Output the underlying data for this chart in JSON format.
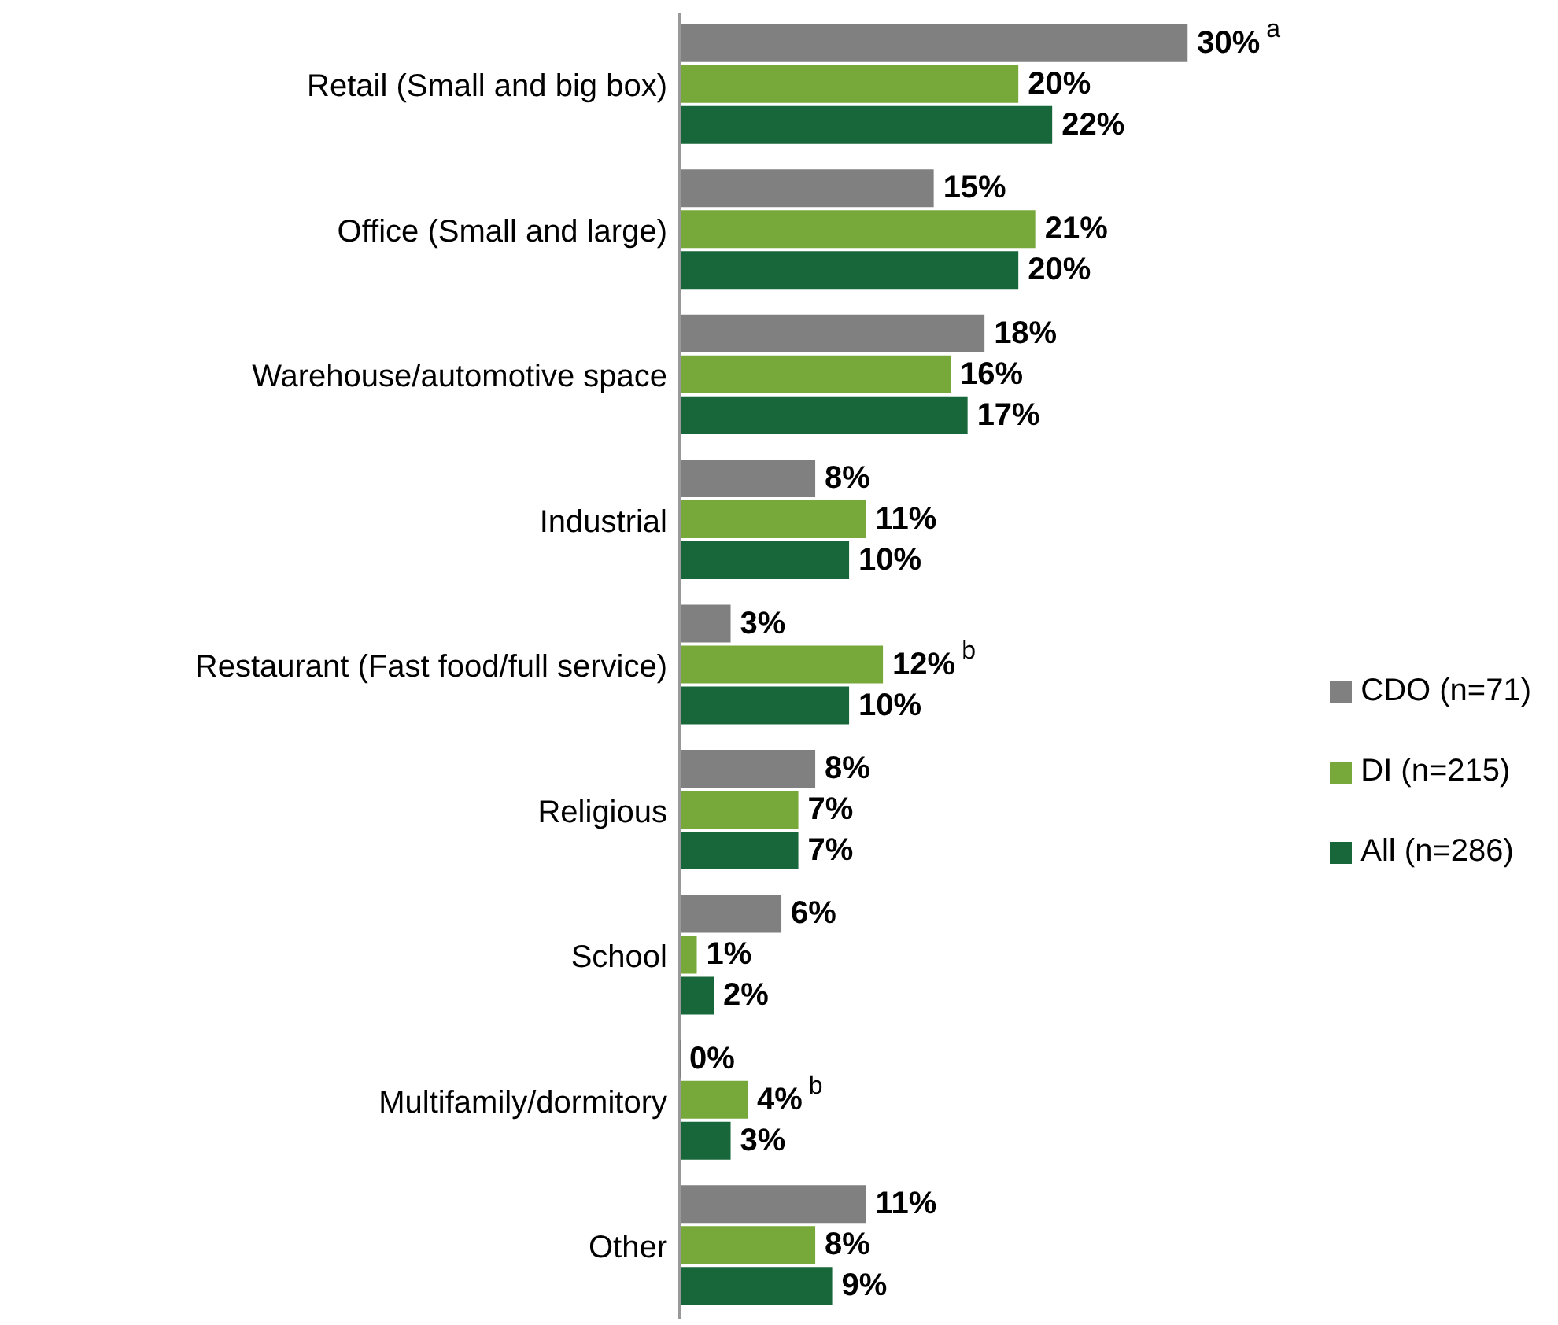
{
  "chart_data": {
    "type": "bar",
    "orientation": "horizontal",
    "data_labels": true,
    "legend": "right",
    "categories": [
      "Retail (Small and big box)",
      "Office (Small and large)",
      "Warehouse/automotive space",
      "Industrial",
      "Restaurant (Fast food/full service)",
      "Religious",
      "School",
      "Multifamily/dormitory",
      "Other"
    ],
    "series": [
      {
        "name": "CDO (n=71)",
        "color": "#808080",
        "values": [
          30,
          15,
          18,
          8,
          3,
          8,
          6,
          0,
          11
        ],
        "value_labels": [
          "30%$^{a}$",
          "15%",
          "18%",
          "8%",
          "3%",
          "8%",
          "6%",
          "0%",
          "11%"
        ]
      },
      {
        "name": "DI (n=215)",
        "color": "#77a83a",
        "values": [
          20,
          21,
          16,
          11,
          12,
          7,
          1,
          4,
          8
        ],
        "value_labels": [
          "20%",
          "21%",
          "16%",
          "11%",
          "12%$^{b}$",
          "7%",
          "1%",
          "4%$^{b}$",
          "8%"
        ]
      },
      {
        "name": "All (n=286)",
        "color": "#17673a",
        "values": [
          22,
          20,
          17,
          10,
          10,
          7,
          2,
          3,
          9
        ],
        "value_labels": [
          "22%",
          "20%",
          "17%",
          "10%",
          "10%",
          "7%",
          "2%",
          "3%",
          "9%"
        ]
      }
    ]
  }
}
